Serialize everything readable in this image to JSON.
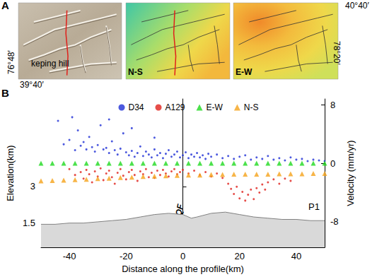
{
  "chart_data": {
    "type": "scatter",
    "x_label": "Distance along the profile(km)",
    "y_label": "Elevation(km)",
    "y2_label": "Velocity (mm/yr)",
    "xlim": [
      -50,
      50
    ],
    "xticks": [
      -40,
      -20,
      0,
      20,
      40
    ],
    "ylim": [
      0.5,
      6.6
    ],
    "yticks": [
      1.5,
      3
    ],
    "y2lim": [
      -11.5,
      8.8
    ],
    "y2ticks": [
      -8,
      0,
      8
    ],
    "grid": false,
    "legend": "top",
    "annotations": [
      {
        "text": "PQF",
        "x": 0
      },
      {
        "text": "P1"
      }
    ],
    "elevation_profile": {
      "type": "area",
      "color": "#d9d9d9",
      "x": [
        -50,
        -45,
        -40,
        -35,
        -30,
        -25,
        -20,
        -15,
        -10,
        -5,
        0,
        3,
        5,
        10,
        15,
        20,
        25,
        30,
        35,
        40,
        45,
        50
      ],
      "values": [
        1.45,
        1.45,
        1.5,
        1.5,
        1.55,
        1.6,
        1.65,
        1.75,
        1.85,
        1.9,
        1.85,
        1.7,
        1.75,
        1.9,
        1.95,
        1.85,
        1.75,
        1.7,
        1.65,
        1.65,
        1.6,
        1.6
      ]
    },
    "series": [
      {
        "name": "D34",
        "color": "#1f2fd6",
        "marker": "circle",
        "axis": "y2",
        "x": [
          -44,
          -42,
          -40,
          -39,
          -38,
          -37,
          -36,
          -35,
          -34,
          -33,
          -32,
          -31,
          -30,
          -29,
          -28,
          -27,
          -26,
          -26,
          -25,
          -24,
          -23,
          -22,
          -21,
          -20,
          -19,
          -18,
          -18,
          -17,
          -16,
          -15,
          -14,
          -13,
          -12,
          -11,
          -10,
          -10,
          -9,
          -8,
          -7,
          -6,
          -5,
          -4,
          -3,
          -2,
          -1,
          0,
          1,
          2,
          3,
          4,
          5,
          6,
          7,
          8,
          9,
          10,
          12,
          14,
          16,
          18,
          20,
          22,
          24,
          26,
          28,
          30,
          32,
          34,
          36,
          38,
          40,
          42,
          44,
          46,
          48,
          50
        ],
        "values": [
          5.8,
          2.6,
          3.2,
          6.3,
          1.8,
          4.5,
          2.4,
          2.9,
          1.9,
          3.6,
          2.2,
          1.6,
          2.5,
          5.2,
          1.9,
          2.1,
          1.4,
          6.0,
          3.0,
          1.8,
          1.2,
          2.0,
          4.1,
          1.5,
          1.1,
          1.7,
          4.8,
          0.9,
          1.4,
          2.3,
          1.0,
          1.6,
          1.2,
          0.8,
          1.9,
          3.5,
          1.1,
          1.4,
          0.7,
          1.3,
          1.8,
          0.9,
          1.2,
          1.6,
          0.8,
          1.1,
          1.5,
          0.7,
          1.2,
          0.9,
          1.4,
          0.8,
          1.1,
          0.6,
          1.3,
          0.9,
          1.2,
          0.7,
          1.0,
          0.6,
          0.9,
          1.1,
          0.5,
          0.8,
          0.6,
          1.0,
          0.5,
          0.7,
          0.4,
          0.8,
          0.5,
          0.6,
          0.3,
          0.5,
          0.4,
          0.3
        ]
      },
      {
        "name": "A129",
        "color": "#e0201b",
        "marker": "circle",
        "axis": "y2",
        "x": [
          -40,
          -38,
          -36,
          -35,
          -34,
          -33,
          -32,
          -31,
          -30,
          -29,
          -28,
          -27,
          -26,
          -25,
          -24,
          -23,
          -22,
          -21,
          -20,
          -19,
          -18,
          -17,
          -16,
          -15,
          -14,
          -13,
          -12,
          -11,
          -10,
          -9,
          -8,
          -7,
          -6,
          -5,
          -4,
          -3,
          -2,
          -1,
          0,
          2,
          4,
          6,
          8,
          10,
          12,
          14,
          16,
          17,
          18,
          19,
          20,
          21,
          22,
          23,
          24,
          25,
          26,
          27,
          28,
          29,
          30,
          32,
          34,
          36,
          38
        ],
        "values": [
          -0.8,
          -1.6,
          -1.2,
          -2.1,
          -0.9,
          -1.5,
          -2.6,
          -1.1,
          -1.8,
          -0.7,
          -2.3,
          -1.4,
          -1.0,
          -1.9,
          -2.8,
          -1.3,
          -0.8,
          -1.7,
          -2.2,
          -1.2,
          -0.9,
          -1.6,
          -2.4,
          -1.1,
          -1.5,
          -0.8,
          -1.9,
          -1.3,
          -2.0,
          -1.0,
          -1.6,
          -0.9,
          -1.4,
          -1.8,
          -1.1,
          -0.8,
          -1.5,
          -1.2,
          -0.9,
          -1.4,
          -1.0,
          -1.6,
          -1.2,
          -1.8,
          -1.4,
          -2.0,
          -2.8,
          -3.5,
          -4.2,
          -3.2,
          -4.8,
          -3.9,
          -5.1,
          -4.3,
          -3.6,
          -4.9,
          -3.4,
          -4.0,
          -2.9,
          -3.6,
          -2.6,
          -2.2,
          -2.8,
          -2.1,
          -2.4
        ]
      },
      {
        "name": "E-W",
        "color": "#1fd91f",
        "marker": "triangle",
        "axis": "y2",
        "x": [
          -50,
          -46,
          -42,
          -38,
          -34,
          -30,
          -26,
          -22,
          -18,
          -14,
          -10,
          -6,
          -2,
          2,
          6,
          10,
          14,
          18,
          22,
          26,
          30,
          34,
          38,
          42,
          46,
          50
        ],
        "values": [
          0,
          0,
          0,
          0,
          0,
          0,
          0,
          0,
          0,
          0,
          0,
          0,
          0,
          0,
          0,
          0,
          0,
          0,
          0,
          0,
          0,
          0,
          0,
          0,
          0,
          0
        ]
      },
      {
        "name": "N-S",
        "color": "#f5a31a",
        "marker": "triangle",
        "axis": "y2",
        "x": [
          -50,
          -46,
          -42,
          -38,
          -34,
          -30,
          -26,
          -22,
          -18,
          -14,
          -10,
          -6,
          -2,
          2,
          6,
          10,
          14,
          18,
          22,
          26,
          30,
          34,
          38,
          42,
          46,
          50
        ],
        "values": [
          -2.4,
          -2.35,
          -2.3,
          -2.25,
          -2.2,
          -2.1,
          -2.05,
          -1.95,
          -1.9,
          -1.8,
          -1.75,
          -1.7,
          -1.65,
          -1.6,
          -1.6,
          -1.55,
          -1.55,
          -1.5,
          -1.5,
          -1.5,
          -1.5,
          -1.45,
          -1.45,
          -1.45,
          -1.4,
          -1.4
        ]
      }
    ]
  },
  "figure": {
    "panel_labels": [
      "A",
      "B"
    ],
    "maps": [
      {
        "label": "keping hill"
      },
      {
        "label": "N-S"
      },
      {
        "label": "E-W"
      }
    ],
    "coordinates": {
      "top_right_lat": "40°40′",
      "right_lon": "78°20′",
      "left_lon": "76°48′",
      "bottom_left_lat": "39°40′"
    }
  }
}
